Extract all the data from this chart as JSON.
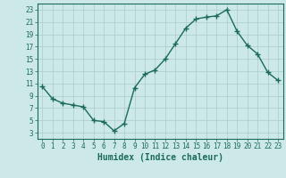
{
  "x": [
    0,
    1,
    2,
    3,
    4,
    5,
    6,
    7,
    8,
    9,
    10,
    11,
    12,
    13,
    14,
    15,
    16,
    17,
    18,
    19,
    20,
    21,
    22,
    23
  ],
  "y": [
    10.5,
    8.5,
    7.8,
    7.5,
    7.2,
    5.0,
    4.8,
    3.3,
    4.5,
    10.3,
    12.5,
    13.2,
    15.0,
    17.5,
    20.0,
    21.5,
    21.8,
    22.0,
    23.0,
    19.5,
    17.2,
    15.8,
    12.8,
    11.5
  ],
  "line_color": "#1a6b5a",
  "marker": "+",
  "markersize": 4,
  "linewidth": 1.0,
  "bg_color": "#cce8e8",
  "grid_color": "#aacccc",
  "xlabel": "Humidex (Indice chaleur)",
  "xlim": [
    -0.5,
    23.5
  ],
  "ylim": [
    2,
    24
  ],
  "yticks": [
    3,
    5,
    7,
    9,
    11,
    13,
    15,
    17,
    19,
    21,
    23
  ],
  "xticks": [
    0,
    1,
    2,
    3,
    4,
    5,
    6,
    7,
    8,
    9,
    10,
    11,
    12,
    13,
    14,
    15,
    16,
    17,
    18,
    19,
    20,
    21,
    22,
    23
  ],
  "tick_fontsize": 5.5,
  "xlabel_fontsize": 7,
  "tick_color": "#1a6b5a",
  "axis_color": "#1a6b5a"
}
